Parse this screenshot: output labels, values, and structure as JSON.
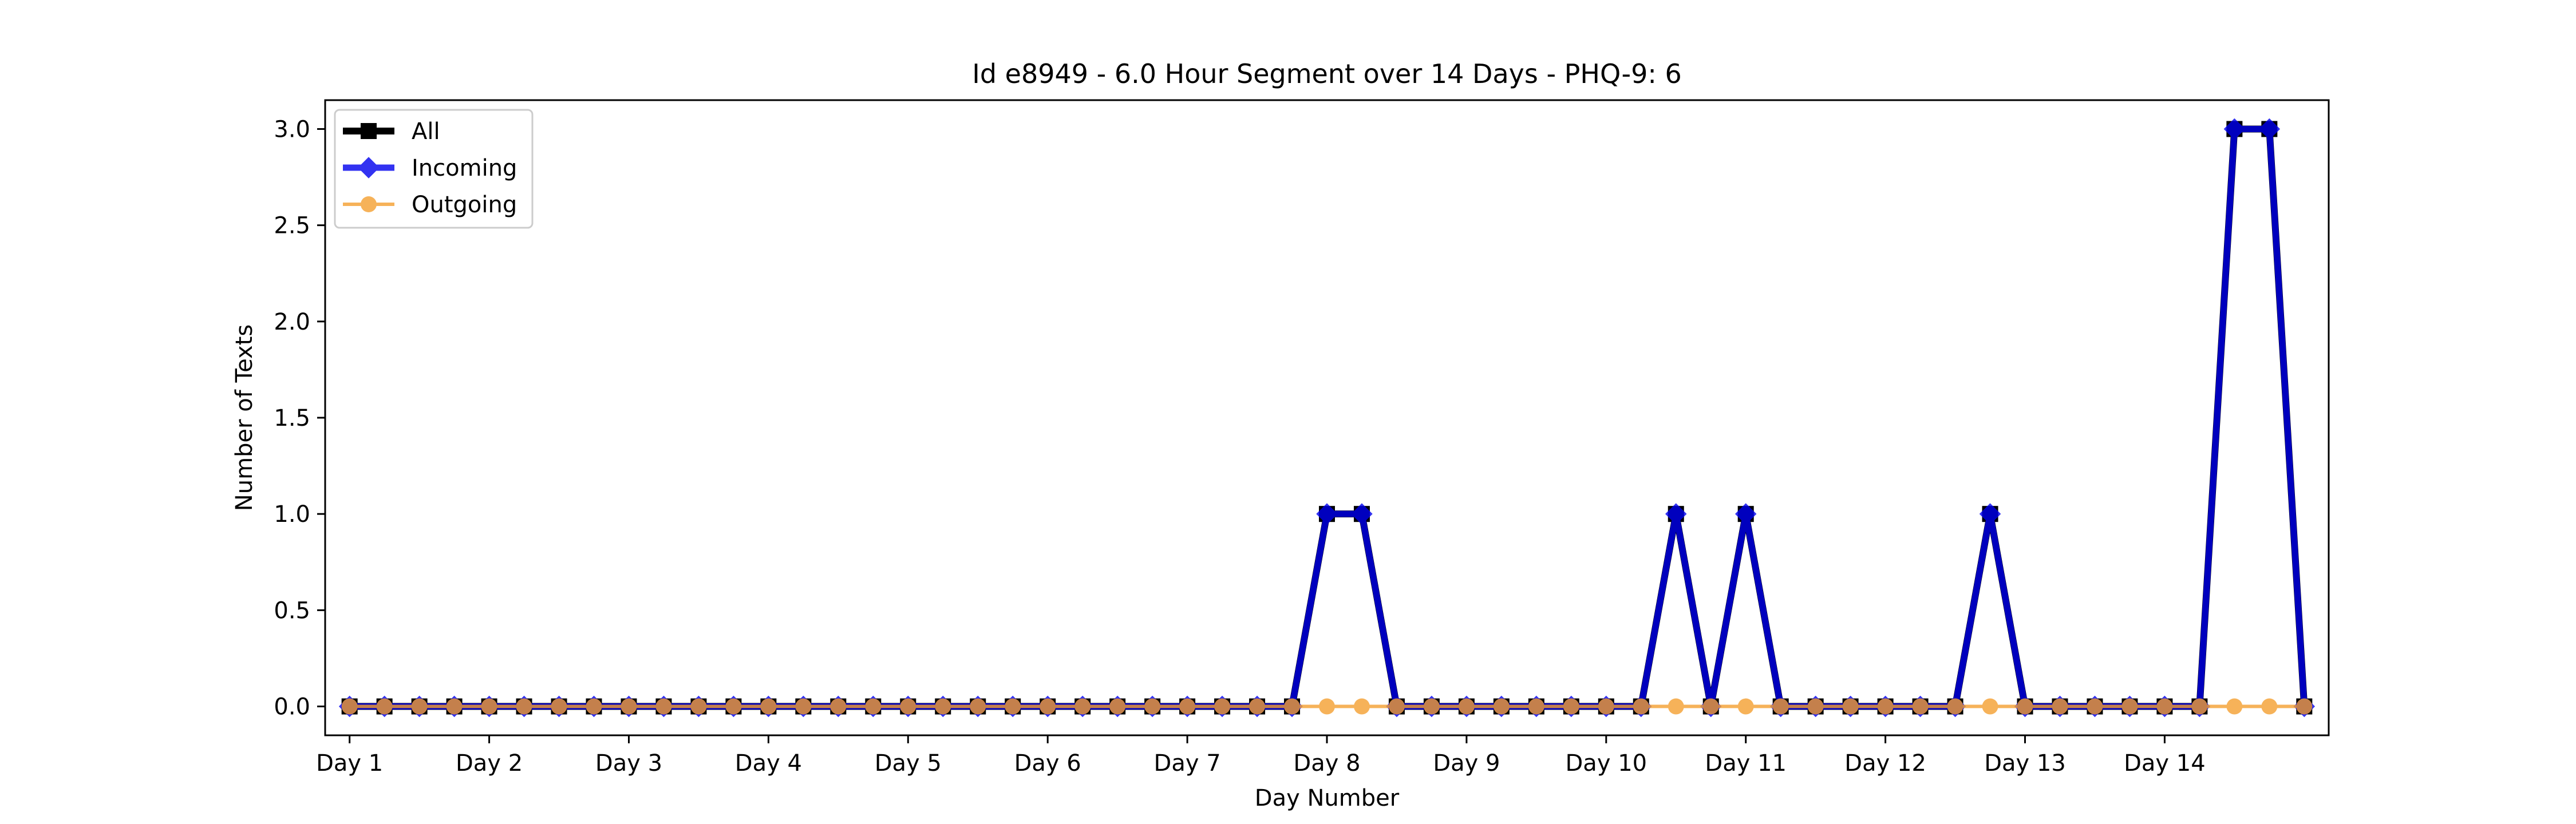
{
  "chart_data": {
    "type": "line",
    "title": "Id e8949 - 6.0 Hour Segment over 14 Days - PHQ-9: 6",
    "xlabel": "Day Number",
    "ylabel": "Number of Texts",
    "xlim": [
      -0.7,
      56.7
    ],
    "ylim": [
      -0.15,
      3.15
    ],
    "x_ticks": [
      {
        "x": 0,
        "label": "Day 1"
      },
      {
        "x": 4,
        "label": "Day 2"
      },
      {
        "x": 8,
        "label": "Day 3"
      },
      {
        "x": 12,
        "label": "Day 4"
      },
      {
        "x": 16,
        "label": "Day 5"
      },
      {
        "x": 20,
        "label": "Day 6"
      },
      {
        "x": 24,
        "label": "Day 7"
      },
      {
        "x": 28,
        "label": "Day 8"
      },
      {
        "x": 32,
        "label": "Day 9"
      },
      {
        "x": 36,
        "label": "Day 10"
      },
      {
        "x": 40,
        "label": "Day 11"
      },
      {
        "x": 44,
        "label": "Day 12"
      },
      {
        "x": 48,
        "label": "Day 13"
      },
      {
        "x": 52,
        "label": "Day 14"
      }
    ],
    "y_ticks": [
      {
        "y": 0.0,
        "label": "0.0"
      },
      {
        "y": 0.5,
        "label": "0.5"
      },
      {
        "y": 1.0,
        "label": "1.0"
      },
      {
        "y": 1.5,
        "label": "1.5"
      },
      {
        "y": 2.0,
        "label": "2.0"
      },
      {
        "y": 2.5,
        "label": "2.5"
      },
      {
        "y": 3.0,
        "label": "3.0"
      }
    ],
    "legend_position": "top-left",
    "grid": false,
    "series": [
      {
        "name": "All",
        "color": "#000000",
        "marker": "square",
        "values": [
          0,
          0,
          0,
          0,
          0,
          0,
          0,
          0,
          0,
          0,
          0,
          0,
          0,
          0,
          0,
          0,
          0,
          0,
          0,
          0,
          0,
          0,
          0,
          0,
          0,
          0,
          0,
          0,
          1,
          1,
          0,
          0,
          0,
          0,
          0,
          0,
          0,
          0,
          1,
          0,
          1,
          0,
          0,
          0,
          0,
          0,
          0,
          1,
          0,
          0,
          0,
          0,
          0,
          0,
          3,
          3,
          0
        ]
      },
      {
        "name": "Incoming",
        "color": "#0000ee",
        "marker": "diamond",
        "values": [
          0,
          0,
          0,
          0,
          0,
          0,
          0,
          0,
          0,
          0,
          0,
          0,
          0,
          0,
          0,
          0,
          0,
          0,
          0,
          0,
          0,
          0,
          0,
          0,
          0,
          0,
          0,
          0,
          1,
          1,
          0,
          0,
          0,
          0,
          0,
          0,
          0,
          0,
          1,
          0,
          1,
          0,
          0,
          0,
          0,
          0,
          0,
          1,
          0,
          0,
          0,
          0,
          0,
          0,
          3,
          3,
          0
        ]
      },
      {
        "name": "Outgoing",
        "color": "#f5a030",
        "marker": "circle",
        "values": [
          0,
          0,
          0,
          0,
          0,
          0,
          0,
          0,
          0,
          0,
          0,
          0,
          0,
          0,
          0,
          0,
          0,
          0,
          0,
          0,
          0,
          0,
          0,
          0,
          0,
          0,
          0,
          0,
          0,
          0,
          0,
          0,
          0,
          0,
          0,
          0,
          0,
          0,
          0,
          0,
          0,
          0,
          0,
          0,
          0,
          0,
          0,
          0,
          0,
          0,
          0,
          0,
          0,
          0,
          0,
          0,
          0
        ]
      }
    ]
  }
}
